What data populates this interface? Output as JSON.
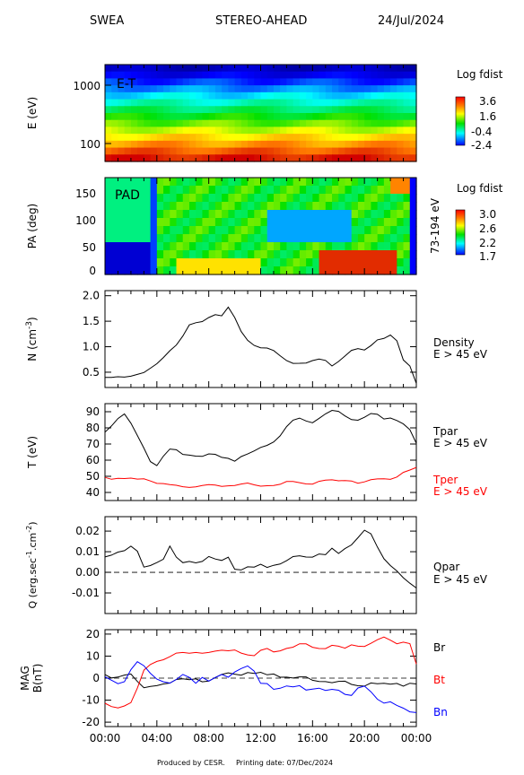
{
  "header": {
    "instrument": "SWEA",
    "spacecraft": "STEREO-AHEAD",
    "date": "24/Jul/2024"
  },
  "footer": {
    "credit": "Produced by CESR.",
    "printed": "Printing date: 07/Dec/2024"
  },
  "chart_data": [
    {
      "type": "heatmap",
      "id": "et",
      "panel_label": "E-T",
      "ylabel": "E (eV)",
      "yscale": "log",
      "y_ticks": [
        "1000",
        "100"
      ],
      "colorbar": {
        "title": "Log fdist",
        "ticks": [
          "3.6",
          "1.6",
          "-0.4",
          "-2.4"
        ]
      }
    },
    {
      "type": "heatmap",
      "id": "pad",
      "panel_label": "PAD",
      "ylabel": "PA (deg)",
      "right_label": "73-194 eV",
      "y_ticks": [
        "150",
        "100",
        "50",
        "0"
      ],
      "colorbar": {
        "title": "Log fdist",
        "ticks": [
          "3.0",
          "2.6",
          "2.2",
          "1.7"
        ]
      }
    },
    {
      "type": "line",
      "id": "density",
      "ylabel": "N (cm",
      "ylabel_sup": "-3",
      "ylabel_end": ")",
      "y_ticks": [
        "2.0",
        "1.5",
        "1.0",
        "0.5"
      ],
      "ylim": [
        0.2,
        2.1
      ],
      "series": [
        {
          "name": "Density",
          "color": "#000000",
          "x": [
            0,
            0.5,
            1,
            1.5,
            2,
            2.5,
            3,
            3.5,
            4,
            4.5,
            5,
            5.5,
            6,
            6.5,
            7,
            7.5,
            8,
            8.5,
            9,
            9.5,
            10,
            10.5,
            11,
            11.5,
            12,
            12.5,
            13,
            13.5,
            14,
            14.5,
            15,
            15.5,
            16,
            16.5,
            17,
            17.5,
            18,
            18.5,
            19,
            19.5,
            20,
            20.5,
            21,
            21.5,
            22,
            22.5,
            23,
            23.5,
            24
          ],
          "y": [
            0.38,
            0.37,
            0.4,
            0.42,
            0.45,
            0.47,
            0.48,
            0.55,
            0.65,
            0.8,
            0.95,
            1.05,
            1.2,
            1.4,
            1.45,
            1.5,
            1.6,
            1.65,
            1.6,
            1.75,
            1.55,
            1.3,
            1.15,
            1.05,
            0.98,
            0.95,
            0.9,
            0.82,
            0.75,
            0.7,
            0.68,
            0.66,
            0.7,
            0.75,
            0.75,
            0.65,
            0.72,
            0.8,
            0.9,
            0.95,
            0.95,
            1.05,
            1.15,
            1.15,
            1.2,
            1.1,
            0.75,
            0.65,
            0.3
          ]
        }
      ],
      "legend": [
        "Density",
        "E > 45 eV"
      ]
    },
    {
      "type": "line",
      "id": "temperature",
      "ylabel": "T (eV)",
      "y_ticks": [
        "90",
        "80",
        "70",
        "60",
        "50",
        "40"
      ],
      "ylim": [
        35,
        95
      ],
      "series": [
        {
          "name": "Tpar",
          "color": "#000000",
          "x": [
            0,
            0.5,
            1,
            1.5,
            2,
            2.5,
            3,
            3.5,
            4,
            4.5,
            5,
            5.5,
            6,
            6.5,
            7,
            7.5,
            8,
            8.5,
            9,
            9.5,
            10,
            10.5,
            11,
            11.5,
            12,
            12.5,
            13,
            13.5,
            14,
            14.5,
            15,
            15.5,
            16,
            16.5,
            17,
            17.5,
            18,
            18.5,
            19,
            19.5,
            20,
            20.5,
            21,
            21.5,
            22,
            22.5,
            23,
            23.5,
            24
          ],
          "y": [
            78,
            82,
            86,
            88,
            82,
            75,
            68,
            60,
            57,
            62,
            66,
            66,
            64,
            64,
            63,
            62,
            63,
            63,
            62,
            62,
            60,
            62,
            63,
            65,
            68,
            70,
            72,
            75,
            80,
            84,
            86,
            85,
            84,
            86,
            88,
            90,
            90,
            88,
            86,
            85,
            86,
            88,
            88,
            86,
            87,
            85,
            82,
            78,
            70
          ]
        },
        {
          "name": "Tper",
          "color": "#ff0000",
          "x": [
            0,
            0.5,
            1,
            1.5,
            2,
            2.5,
            3,
            3.5,
            4,
            4.5,
            5,
            5.5,
            6,
            6.5,
            7,
            7.5,
            8,
            8.5,
            9,
            9.5,
            10,
            10.5,
            11,
            11.5,
            12,
            12.5,
            13,
            13.5,
            14,
            14.5,
            15,
            15.5,
            16,
            16.5,
            17,
            17.5,
            18,
            18.5,
            19,
            19.5,
            20,
            20.5,
            21,
            21.5,
            22,
            22.5,
            23,
            23.5,
            24
          ],
          "y": [
            50,
            49,
            49,
            48,
            48,
            48,
            49,
            48,
            46,
            45,
            44,
            44,
            44,
            44,
            44,
            44,
            44,
            44,
            44,
            45,
            45,
            45,
            45,
            44,
            44,
            45,
            45,
            45,
            46,
            46,
            46,
            46,
            46,
            47,
            47,
            47,
            47,
            48,
            48,
            46,
            46,
            47,
            48,
            49,
            49,
            50,
            52,
            53,
            55
          ]
        }
      ],
      "legend": [
        {
          "text": "Tpar",
          "color": "#000000"
        },
        {
          "text": "E > 45 eV",
          "color": "#000000"
        },
        {
          "text": "Tper",
          "color": "#ff0000"
        },
        {
          "text": "E > 45 eV",
          "color": "#ff0000"
        }
      ]
    },
    {
      "type": "line",
      "id": "heatflux",
      "ylabel": "Q (erg.sec",
      "ylabel_sup1": "-1",
      "ylabel_mid": ".cm",
      "ylabel_sup2": "-2",
      "ylabel_end": ")",
      "y_ticks": [
        "0.02",
        "0.01",
        "0.00",
        "-0.01"
      ],
      "ylim": [
        -0.02,
        0.027
      ],
      "zero_line": true,
      "series": [
        {
          "name": "Qpar",
          "color": "#000000",
          "x": [
            0,
            0.5,
            1,
            1.5,
            2,
            2.5,
            3,
            3.5,
            4,
            4.5,
            5,
            5.5,
            6,
            6.5,
            7,
            7.5,
            8,
            8.5,
            9,
            9.5,
            10,
            10.5,
            11,
            11.5,
            12,
            12.5,
            13,
            13.5,
            14,
            14.5,
            15,
            15.5,
            16,
            16.5,
            17,
            17.5,
            18,
            18.5,
            19,
            19.5,
            20,
            20.5,
            21,
            21.5,
            22,
            22.5,
            23,
            23.5,
            24
          ],
          "y": [
            0.008,
            0.009,
            0.01,
            0.01,
            0.012,
            0.01,
            0.003,
            0.004,
            0.005,
            0.006,
            0.012,
            0.007,
            0.005,
            0.006,
            0.005,
            0.005,
            0.007,
            0.006,
            0.006,
            0.008,
            0.002,
            0.001,
            0.002,
            0.002,
            0.004,
            0.003,
            0.004,
            0.004,
            0.005,
            0.007,
            0.008,
            0.008,
            0.008,
            0.009,
            0.008,
            0.011,
            0.009,
            0.012,
            0.014,
            0.017,
            0.02,
            0.018,
            0.012,
            0.007,
            0.004,
            0.001,
            -0.003,
            -0.006,
            -0.008
          ]
        }
      ],
      "legend": [
        "Qpar",
        "E > 45 eV"
      ]
    },
    {
      "type": "line",
      "id": "mag",
      "ylabel": "MAG",
      "ylabel2": "B(nT)",
      "y_ticks": [
        "20",
        "10",
        "0",
        "-10",
        "-20"
      ],
      "ylim": [
        -22,
        22
      ],
      "zero_line": true,
      "x_ticks": [
        "00:00",
        "04:00",
        "08:00",
        "12:00",
        "16:00",
        "20:00",
        "00:00"
      ],
      "series": [
        {
          "name": "Br",
          "color": "#000000",
          "x": [
            0,
            0.5,
            1,
            1.5,
            2,
            2.5,
            3,
            3.5,
            4,
            4.5,
            5,
            5.5,
            6,
            6.5,
            7,
            7.5,
            8,
            8.5,
            9,
            9.5,
            10,
            10.5,
            11,
            11.5,
            12,
            12.5,
            13,
            13.5,
            14,
            14.5,
            15,
            15.5,
            16,
            16.5,
            17,
            17.5,
            18,
            18.5,
            19,
            19.5,
            20,
            20.5,
            21,
            21.5,
            22,
            22.5,
            23,
            23.5,
            24
          ],
          "y": [
            1,
            0,
            1,
            2,
            2,
            -2,
            -5,
            -4,
            -3,
            -2,
            -2,
            -1,
            -1,
            -1,
            0,
            -1,
            -1,
            0,
            1,
            2,
            2,
            2,
            3,
            2,
            2,
            1,
            2,
            1,
            1,
            0,
            0,
            0,
            -1,
            -1,
            -1,
            -2,
            -2,
            -2,
            -3,
            -3,
            -3,
            -2,
            -3,
            -3,
            -3,
            -2,
            -3,
            -2,
            -3
          ]
        },
        {
          "name": "Bt",
          "color": "#ff0000",
          "x": [
            0,
            0.5,
            1,
            1.5,
            2,
            2.5,
            3,
            3.5,
            4,
            4.5,
            5,
            5.5,
            6,
            6.5,
            7,
            7.5,
            8,
            8.5,
            9,
            9.5,
            10,
            10.5,
            11,
            11.5,
            12,
            12.5,
            13,
            13.5,
            14,
            14.5,
            15,
            15.5,
            16,
            16.5,
            17,
            17.5,
            18,
            18.5,
            19,
            19.5,
            20,
            20.5,
            21,
            21.5,
            22,
            22.5,
            23,
            23.5,
            24
          ],
          "y": [
            -12,
            -13,
            -13,
            -12,
            -11,
            -5,
            3,
            6,
            8,
            9,
            10,
            11,
            11,
            11,
            12,
            12,
            12,
            12,
            12,
            12,
            13,
            12,
            11,
            10,
            12,
            13,
            12,
            13,
            14,
            14,
            15,
            15,
            14,
            14,
            14,
            15,
            14,
            13,
            15,
            15,
            15,
            16,
            17,
            18,
            17,
            16,
            17,
            16,
            6
          ]
        },
        {
          "name": "Bn",
          "color": "#0000ff",
          "x": [
            0,
            0.5,
            1,
            1.5,
            2,
            2.5,
            3,
            3.5,
            4,
            4.5,
            5,
            5.5,
            6,
            6.5,
            7,
            7.5,
            8,
            8.5,
            9,
            9.5,
            10,
            10.5,
            11,
            11.5,
            12,
            12.5,
            13,
            13.5,
            14,
            14.5,
            15,
            15.5,
            16,
            16.5,
            17,
            17.5,
            18,
            18.5,
            19,
            19.5,
            20,
            20.5,
            21,
            21.5,
            22,
            22.5,
            23,
            23.5,
            24
          ],
          "y": [
            0,
            -1,
            -2,
            -1,
            4,
            7,
            5,
            2,
            0,
            -1,
            -2,
            -1,
            1,
            0,
            -2,
            1,
            -1,
            0,
            1,
            0,
            3,
            5,
            6,
            3,
            -3,
            -3,
            -5,
            -4,
            -3,
            -4,
            -4,
            -6,
            -5,
            -4,
            -5,
            -5,
            -6,
            -8,
            -8,
            -4,
            -3,
            -6,
            -10,
            -12,
            -11,
            -12,
            -13,
            -15,
            -16
          ]
        }
      ],
      "legend": [
        {
          "text": "Br",
          "color": "#000000"
        },
        {
          "text": "Bt",
          "color": "#ff0000"
        },
        {
          "text": "Bn",
          "color": "#0000ff"
        }
      ]
    }
  ]
}
